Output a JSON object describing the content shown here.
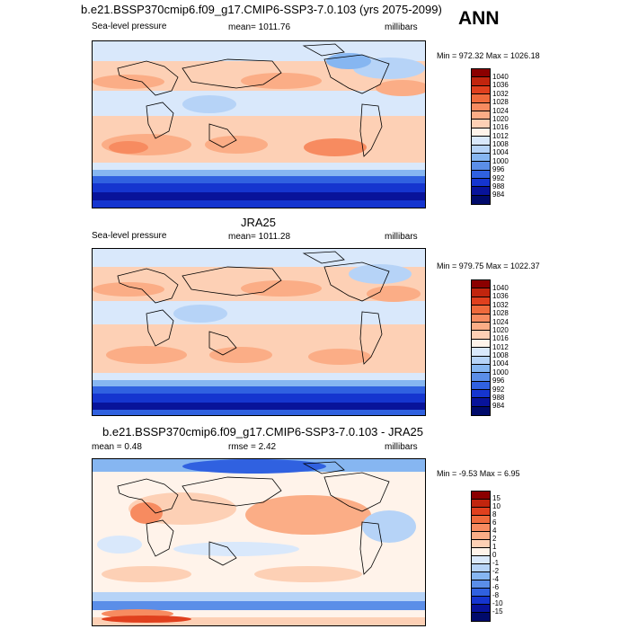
{
  "season": "ANN",
  "panels": [
    {
      "title": "b.e21.BSSP370cmip6.f09_g17.CMIP6-SSP3-7.0.103 (yrs 2075-2099)",
      "left_label": "Sea-level pressure",
      "center_label": "mean= 1011.76",
      "right_label": "millibars",
      "minmax": "Min = 972.32 Max = 1026.18",
      "colorbar": {
        "labels": [
          "1040",
          "1036",
          "1032",
          "1028",
          "1024",
          "1020",
          "1016",
          "1012",
          "1008",
          "1004",
          "1000",
          "996",
          "992",
          "988",
          "984"
        ],
        "colors": [
          "#8b0000",
          "#c1250e",
          "#e0401e",
          "#ef6a3c",
          "#f78b60",
          "#fbad86",
          "#fdd0b5",
          "#fff3ea",
          "#d9e8fb",
          "#b6d3f7",
          "#86b6f1",
          "#5b8ee8",
          "#3061e0",
          "#1535cf",
          "#08139a",
          "#000a6b"
        ]
      }
    },
    {
      "title": "JRA25",
      "left_label": "Sea-level pressure",
      "center_label": "mean= 1011.28",
      "right_label": "millibars",
      "minmax": "Min = 979.75 Max = 1022.37",
      "colorbar": {
        "labels": [
          "1040",
          "1036",
          "1032",
          "1028",
          "1024",
          "1020",
          "1016",
          "1012",
          "1008",
          "1004",
          "1000",
          "996",
          "992",
          "988",
          "984"
        ],
        "colors": [
          "#8b0000",
          "#c1250e",
          "#e0401e",
          "#ef6a3c",
          "#f78b60",
          "#fbad86",
          "#fdd0b5",
          "#fff3ea",
          "#d9e8fb",
          "#b6d3f7",
          "#86b6f1",
          "#5b8ee8",
          "#3061e0",
          "#1535cf",
          "#08139a",
          "#000a6b"
        ]
      }
    },
    {
      "title": "b.e21.BSSP370cmip6.f09_g17.CMIP6-SSP3-7.0.103 - JRA25",
      "left_label": "mean =   0.48",
      "center_label": "rmse =   2.42",
      "right_label": "millibars",
      "minmax": "Min =  -9.53 Max =   6.95",
      "colorbar": {
        "labels": [
          "15",
          "10",
          "8",
          "6",
          "4",
          "2",
          "1",
          "0",
          "-1",
          "-2",
          "-4",
          "-6",
          "-8",
          "-10",
          "-15"
        ],
        "colors": [
          "#8b0000",
          "#c1250e",
          "#e0401e",
          "#ef6a3c",
          "#f78b60",
          "#fbad86",
          "#fdd0b5",
          "#fff3ea",
          "#d9e8fb",
          "#b6d3f7",
          "#86b6f1",
          "#5b8ee8",
          "#3061e0",
          "#1535cf",
          "#08139a",
          "#000a6b"
        ]
      }
    }
  ],
  "palette": {
    "low_dark": "#000a6b",
    "blue": "#3061e0",
    "light_blue": "#b6d3f7",
    "neutral": "#fff3ea",
    "light_red": "#fdd0b5",
    "red": "#ef6a3c"
  }
}
